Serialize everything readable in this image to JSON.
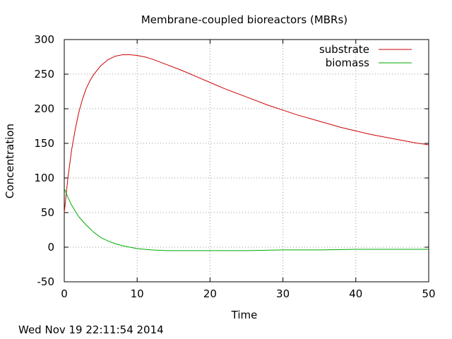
{
  "chart_data": {
    "type": "line",
    "title": "Membrane-coupled bioreactors (MBRs)",
    "xlabel": "Time",
    "ylabel": "Concentration",
    "xlim": [
      0,
      50
    ],
    "ylim": [
      -50,
      300
    ],
    "xticks": [
      0,
      10,
      20,
      30,
      40,
      50
    ],
    "yticks": [
      -50,
      0,
      50,
      100,
      150,
      200,
      250,
      300
    ],
    "grid": true,
    "legend_position": "top-right",
    "series": [
      {
        "name": "substrate",
        "color": "#cc0000",
        "x": [
          0,
          0.5,
          1,
          1.5,
          2,
          2.5,
          3,
          3.5,
          4,
          5,
          6,
          7,
          8,
          9,
          10,
          11,
          12,
          14,
          16,
          18,
          20,
          22,
          25,
          28,
          30,
          32,
          35,
          38,
          40,
          42,
          45,
          48,
          50
        ],
        "y": [
          50,
          100,
          140,
          170,
          195,
          214,
          229,
          240,
          249,
          262,
          271,
          276,
          278,
          278,
          277,
          275,
          272,
          264,
          256,
          247,
          238,
          229,
          217,
          205,
          198,
          191,
          182,
          173,
          168,
          163,
          157,
          151,
          148
        ]
      },
      {
        "name": "biomass",
        "color": "#00aa00",
        "x": [
          0,
          0.5,
          1,
          1.5,
          2,
          3,
          4,
          5,
          6,
          7,
          8,
          9,
          10,
          11,
          12,
          14,
          16,
          18,
          20,
          25,
          30,
          35,
          40,
          45,
          50
        ],
        "y": [
          85,
          72,
          61,
          52,
          44,
          32,
          22,
          14,
          9,
          5,
          2,
          0,
          -2,
          -3,
          -4,
          -5,
          -5,
          -5,
          -5,
          -5,
          -4,
          -4,
          -3,
          -3,
          -3
        ]
      }
    ]
  },
  "footer": {
    "timestamp": "Wed Nov 19 22:11:54 2014"
  }
}
